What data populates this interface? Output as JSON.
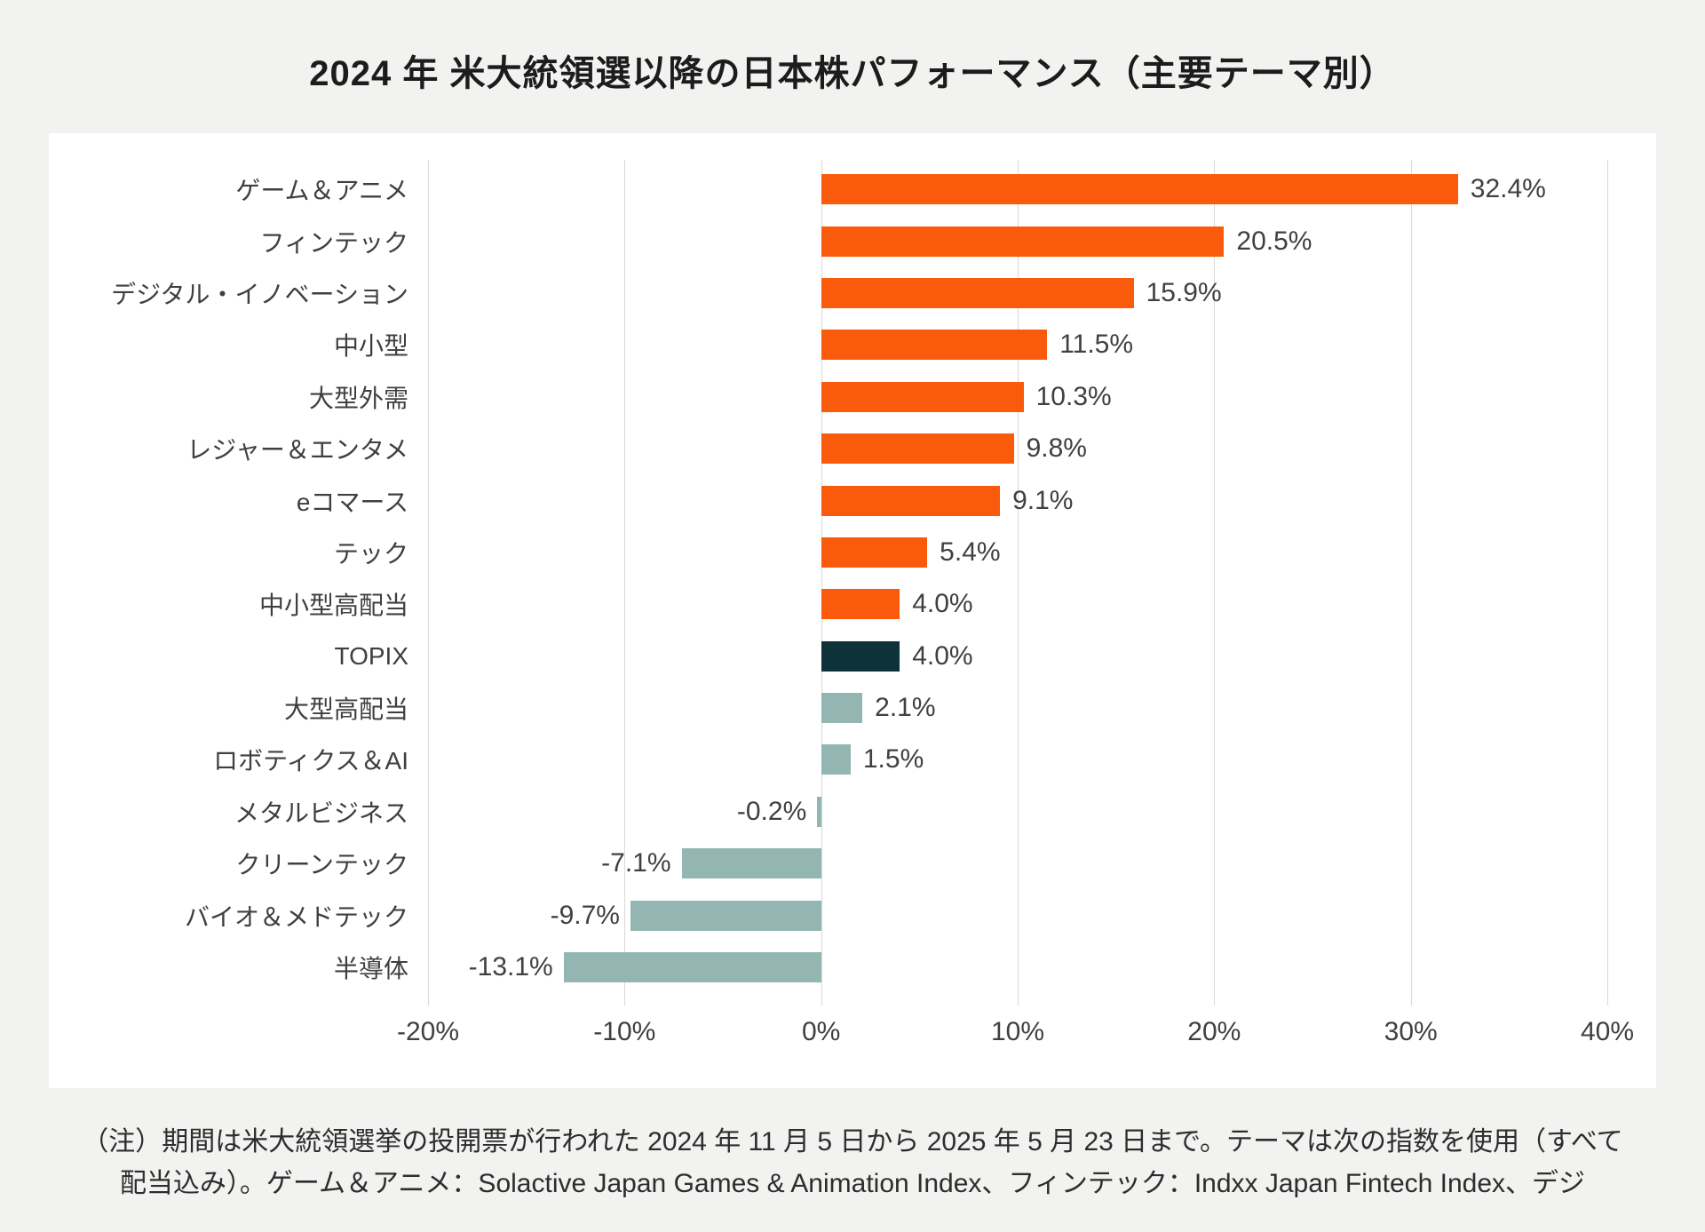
{
  "title": "2024 年 米大統領選以降の日本株パフォーマンス（主要テーマ別）",
  "chart_data": {
    "type": "bar",
    "orientation": "horizontal",
    "title": "2024 年 米大統領選以降の日本株パフォーマンス（主要テーマ別）",
    "categories": [
      "ゲーム＆アニメ",
      "フィンテック",
      "デジタル・イノベーション",
      "中小型",
      "大型外需",
      "レジャー＆エンタメ",
      "eコマース",
      "テック",
      "中小型高配当",
      "TOPIX",
      "大型高配当",
      "ロボティクス＆AI",
      "メタルビジネス",
      "クリーンテック",
      "バイオ＆メドテック",
      "半導体"
    ],
    "values": [
      32.4,
      20.5,
      15.9,
      11.5,
      10.3,
      9.8,
      9.1,
      5.4,
      4.0,
      4.0,
      2.1,
      1.5,
      -0.2,
      -7.1,
      -9.7,
      -13.1
    ],
    "value_labels": [
      "32.4%",
      "20.5%",
      "15.9%",
      "11.5%",
      "10.3%",
      "9.8%",
      "9.1%",
      "5.4%",
      "4.0%",
      "4.0%",
      "2.1%",
      "1.5%",
      "-0.2%",
      "-7.1%",
      "-9.7%",
      "-13.1%"
    ],
    "bar_roles": [
      "positive",
      "positive",
      "positive",
      "positive",
      "positive",
      "positive",
      "positive",
      "positive",
      "positive",
      "benchmark",
      "lagging",
      "lagging",
      "lagging",
      "lagging",
      "lagging",
      "lagging"
    ],
    "colors": {
      "positive": "#fa5a0b",
      "benchmark": "#0d323a",
      "lagging": "#93b6b3",
      "grid": "#d9d9d9",
      "panel": "#ffffff",
      "background": "#f2f2f1",
      "text": "#3f3f3f"
    },
    "xlim": [
      -20,
      40
    ],
    "x_ticks": [
      "-20%",
      "-10%",
      "0%",
      "10%",
      "20%",
      "30%",
      "40%"
    ],
    "x_tick_values": [
      -20,
      -10,
      0,
      10,
      20,
      30,
      40
    ],
    "grid": true,
    "legend": false
  },
  "note": {
    "line1": "（注）期間は米大統領選挙の投開票が行われた 2024 年 11 月 5 日から 2025 年 5 月 23 日まで。テーマは次の指数を使用（すべて",
    "line2": "配当込み）。ゲーム＆アニメ：Solactive Japan Games & Animation Index、フィンテック：Indxx Japan Fintech Index、デジ"
  }
}
